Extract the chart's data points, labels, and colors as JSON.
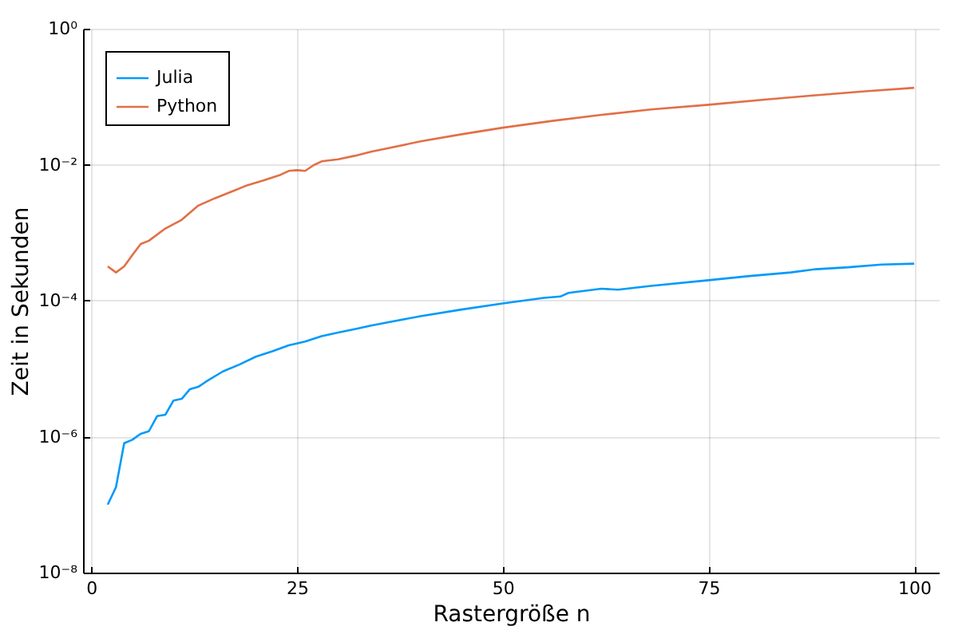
{
  "chart_data": {
    "type": "line",
    "xlabel": "Rastergröße n",
    "ylabel": "Zeit in Sekunden",
    "log": "y",
    "grid": true,
    "legend": "top left",
    "line_style": "solid",
    "marker": "none",
    "xlim": [
      -1,
      103
    ],
    "xticks": [
      0,
      25,
      50,
      75,
      100
    ],
    "ylim": [
      1e-08,
      1
    ],
    "yticks": [
      {
        "value": 1e-08,
        "label": "10⁻⁸"
      },
      {
        "value": 1e-06,
        "label": "10⁻⁶"
      },
      {
        "value": 0.0001,
        "label": "10⁻⁴"
      },
      {
        "value": 0.01,
        "label": "10⁻²"
      },
      {
        "value": 1,
        "label": "10⁰"
      }
    ],
    "series": [
      {
        "name": "Julia",
        "color": "#009af9",
        "x": [
          2,
          3,
          4,
          5,
          6,
          7,
          8,
          9,
          10,
          11,
          12,
          13,
          14,
          16,
          18,
          20,
          22,
          24,
          26,
          28,
          30,
          32,
          34,
          36,
          40,
          45,
          50,
          55,
          57,
          58,
          62,
          64,
          68,
          75,
          80,
          85,
          88,
          92,
          96,
          100
        ],
        "values": [
          1e-07,
          1.8e-07,
          8e-07,
          9e-07,
          1.1e-06,
          1.2e-06,
          2e-06,
          2.1e-06,
          3.4e-06,
          3.6e-06,
          5e-06,
          5.4e-06,
          6.5e-06,
          9.1e-06,
          1.15e-05,
          1.5e-05,
          1.8e-05,
          2.2e-05,
          2.5e-05,
          3e-05,
          3.4e-05,
          3.8e-05,
          4.3e-05,
          4.8e-05,
          5.9e-05,
          7.4e-05,
          9.1e-05,
          0.00011,
          0.000115,
          0.00013,
          0.00015,
          0.000145,
          0.000165,
          0.0002,
          0.00023,
          0.00026,
          0.00029,
          0.00031,
          0.00034,
          0.00035
        ]
      },
      {
        "name": "Python",
        "color": "#e26f46",
        "x": [
          2,
          3,
          4,
          5,
          6,
          7,
          9,
          11,
          13,
          15,
          17,
          19,
          21,
          23,
          24,
          25,
          26,
          27,
          28,
          30,
          32,
          34,
          36,
          40,
          45,
          50,
          56,
          62,
          68,
          75,
          82,
          88,
          94,
          100
        ],
        "values": [
          0.00032,
          0.00026,
          0.00032,
          0.00047,
          0.00068,
          0.00076,
          0.00115,
          0.00155,
          0.0025,
          0.0032,
          0.004,
          0.005,
          0.0059,
          0.0071,
          0.0081,
          0.0083,
          0.0081,
          0.0098,
          0.0112,
          0.012,
          0.0135,
          0.0155,
          0.0174,
          0.022,
          0.028,
          0.035,
          0.044,
          0.054,
          0.065,
          0.076,
          0.091,
          0.105,
          0.12,
          0.135
        ]
      }
    ]
  }
}
